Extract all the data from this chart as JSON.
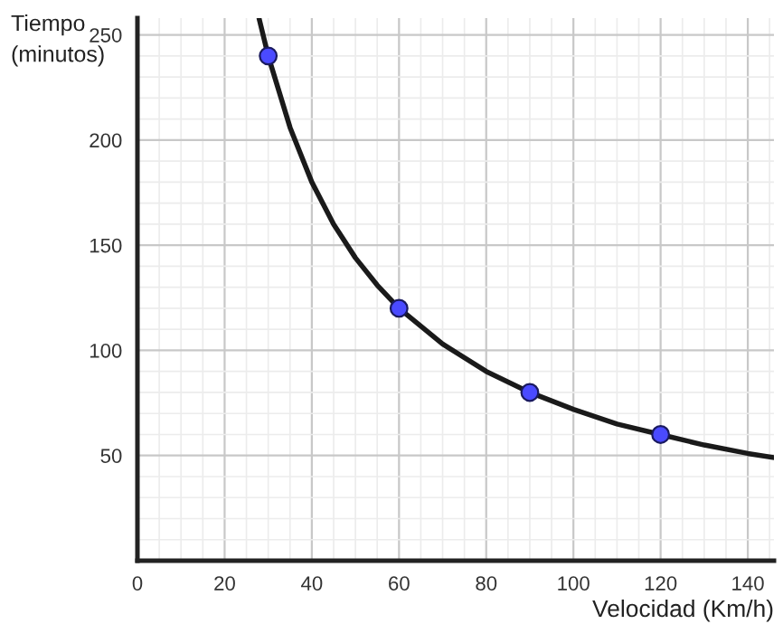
{
  "chart_data": {
    "type": "line",
    "xlabel": "Velocidad (Km/h)",
    "ylabel": "Tiempo\n(minutos)",
    "xlim": [
      0,
      146
    ],
    "ylim": [
      0,
      258
    ],
    "xticks": [
      {
        "value": 0,
        "label": "0"
      },
      20,
      40,
      60,
      80,
      100,
      120,
      140
    ],
    "yticks": [
      50,
      100,
      150,
      200,
      250
    ],
    "grid": true,
    "series": [
      {
        "color": "#1a1a1a",
        "marker": "none",
        "x": [
          28,
          30,
          35,
          40,
          45,
          50,
          55,
          60,
          70,
          80,
          90,
          100,
          110,
          120,
          130,
          140,
          146
        ],
        "values": [
          257,
          240,
          206,
          180,
          160,
          144,
          131,
          120,
          103,
          90,
          80,
          72,
          65,
          60,
          55,
          51,
          49
        ]
      },
      {
        "type": "scatter",
        "color": "#4a4aff",
        "marker": "circle",
        "x": [
          30,
          60,
          90,
          120
        ],
        "values": [
          240,
          120,
          80,
          60
        ]
      }
    ]
  }
}
